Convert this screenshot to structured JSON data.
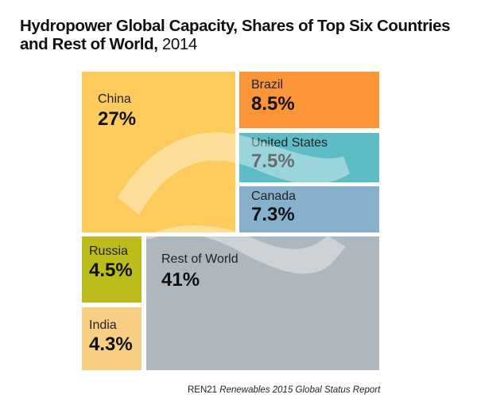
{
  "chart_data": {
    "type": "treemap",
    "title": "Hydropower Global Capacity, Shares of Top Six Countries and Rest of World",
    "title_year": "2014",
    "unit": "%",
    "items": [
      {
        "name": "China",
        "value": 27,
        "label": "27%",
        "color": "#fdcb5c"
      },
      {
        "name": "Brazil",
        "value": 8.5,
        "label": "8.5%",
        "color": "#fb9537"
      },
      {
        "name": "United States",
        "value": 7.5,
        "label": "7.5%",
        "color": "#5dbcc6"
      },
      {
        "name": "Canada",
        "value": 7.3,
        "label": "7.3%",
        "color": "#87b0cd"
      },
      {
        "name": "Russia",
        "value": 4.5,
        "label": "4.5%",
        "color": "#bcbd1d"
      },
      {
        "name": "India",
        "value": 4.3,
        "label": "4.3%",
        "color": "#f8cf82"
      },
      {
        "name": "Rest of World",
        "value": 41,
        "label": "41%",
        "color": "#aeb7bd"
      }
    ]
  },
  "source": {
    "org": "REN21",
    "publication": "Renewables 2015 Global Status Report"
  }
}
